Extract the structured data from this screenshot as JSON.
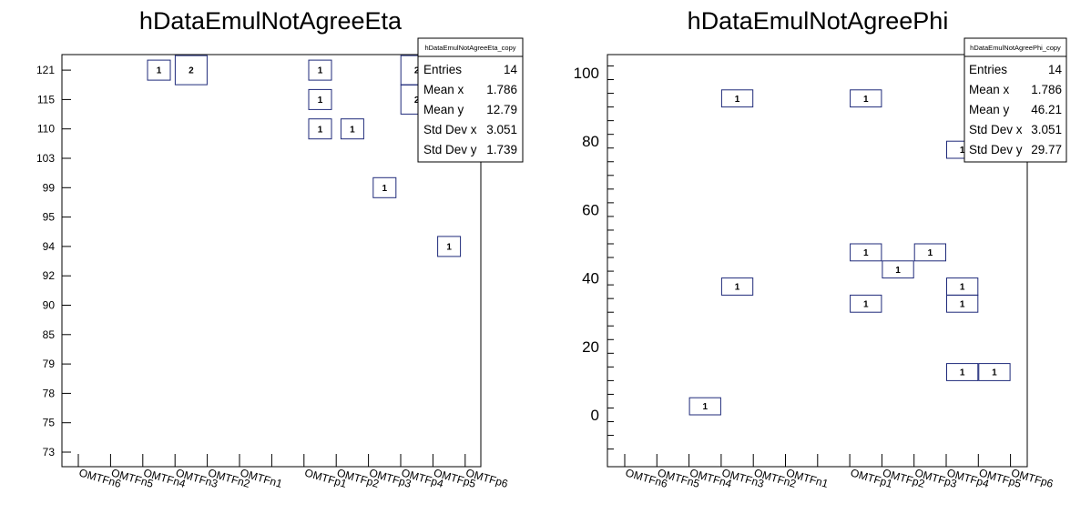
{
  "chart_data": [
    {
      "type": "heatmap",
      "title": "hDataEmulNotAgreeEta",
      "x_categories": [
        "OMTFn6",
        "OMTFn5",
        "OMTFn4",
        "OMTFn3",
        "OMTFn2",
        "OMTFn1",
        "",
        "OMTFp1",
        "OMTFp2",
        "OMTFp3",
        "OMTFp4",
        "OMTFp5",
        "OMTFp6"
      ],
      "y_categories": [
        "73",
        "75",
        "78",
        "79",
        "85",
        "90",
        "92",
        "94",
        "95",
        "99",
        "103",
        "110",
        "115",
        "121"
      ],
      "cells": [
        {
          "x": "OMTFn4",
          "y": "121",
          "value": 1
        },
        {
          "x": "OMTFn3",
          "y": "121",
          "value": 2
        },
        {
          "x": "OMTFp1",
          "y": "121",
          "value": 1
        },
        {
          "x": "OMTFp1",
          "y": "115",
          "value": 1
        },
        {
          "x": "OMTFp1",
          "y": "110",
          "value": 1
        },
        {
          "x": "OMTFp2",
          "y": "110",
          "value": 1
        },
        {
          "x": "OMTFp3",
          "y": "99",
          "value": 1
        },
        {
          "x": "OMTFp4",
          "y": "121",
          "value": 2
        },
        {
          "x": "OMTFp4",
          "y": "115",
          "value": 2
        },
        {
          "x": "OMTFp5",
          "y": "94",
          "value": 1
        }
      ],
      "stats": {
        "title": "hDataEmulNotAgreeEta_copy",
        "rows": [
          {
            "label": "Entries",
            "value": "14"
          },
          {
            "label": "Mean x",
            "value": "1.786"
          },
          {
            "label": "Mean y",
            "value": "12.79"
          },
          {
            "label": "Std Dev x",
            "value": "3.051"
          },
          {
            "label": "Std Dev y",
            "value": "1.739"
          }
        ]
      }
    },
    {
      "type": "heatmap",
      "title": "hDataEmulNotAgreePhi",
      "x_categories": [
        "OMTFn6",
        "OMTFn5",
        "OMTFn4",
        "OMTFn3",
        "OMTFn2",
        "OMTFn1",
        "",
        "OMTFp1",
        "OMTFp2",
        "OMTFp3",
        "OMTFp4",
        "OMTFp5",
        "OMTFp6"
      ],
      "ylim": [
        -15,
        105
      ],
      "y_ticks": [
        0,
        20,
        40,
        60,
        80,
        100
      ],
      "bin_height": 5,
      "cells": [
        {
          "x": "OMTFn4",
          "y": 2.5,
          "value": 1
        },
        {
          "x": "OMTFn3",
          "y": 37.5,
          "value": 1
        },
        {
          "x": "OMTFn3",
          "y": 92.5,
          "value": 1
        },
        {
          "x": "OMTFp1",
          "y": 32.5,
          "value": 1
        },
        {
          "x": "OMTFp1",
          "y": 47.5,
          "value": 1
        },
        {
          "x": "OMTFp1",
          "y": 92.5,
          "value": 1
        },
        {
          "x": "OMTFp2",
          "y": 42.5,
          "value": 1
        },
        {
          "x": "OMTFp3",
          "y": 47.5,
          "value": 1
        },
        {
          "x": "OMTFp4",
          "y": 12.5,
          "value": 1
        },
        {
          "x": "OMTFp4",
          "y": 32.5,
          "value": 1
        },
        {
          "x": "OMTFp4",
          "y": 37.5,
          "value": 1
        },
        {
          "x": "OMTFp4",
          "y": 77.5,
          "value": 1
        },
        {
          "x": "OMTFp5",
          "y": 12.5,
          "value": 1
        }
      ],
      "stats": {
        "title": "hDataEmulNotAgreePhi_copy",
        "rows": [
          {
            "label": "Entries",
            "value": "14"
          },
          {
            "label": "Mean x",
            "value": "1.786"
          },
          {
            "label": "Mean y",
            "value": "46.21"
          },
          {
            "label": "Std Dev x",
            "value": "3.051"
          },
          {
            "label": "Std Dev y",
            "value": "29.77"
          }
        ]
      }
    }
  ],
  "colors": {
    "box": "#1f2a7a",
    "axis": "#000000",
    "background": "#ffffff"
  }
}
